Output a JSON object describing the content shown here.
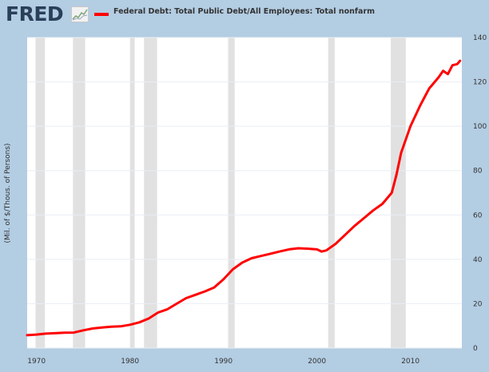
{
  "header": {
    "logo_text": "FRED",
    "logo_icon": "sparkline-chart-icon",
    "legend_label": "Federal Debt: Total Public Debt/All Employees: Total nonfarm",
    "legend_color": "#ff0000"
  },
  "colors": {
    "background": "#b3cde3",
    "plot_background": "#ffffff",
    "recession": "#e1e1e1",
    "line": "#ff0000",
    "grid": "#e9eef3"
  },
  "chart_data": {
    "type": "line",
    "title": "",
    "ylabel": "(Mil. of $/Thous. of Persons)",
    "xlabel": "",
    "xlim": [
      1969,
      2015.5
    ],
    "ylim": [
      0,
      140
    ],
    "x_ticks": [
      1970,
      1980,
      1990,
      2000,
      2010
    ],
    "y_ticks": [
      0,
      20,
      40,
      60,
      80,
      100,
      120,
      140
    ],
    "y_axis_side": "right",
    "grid": true,
    "legend_position": "top",
    "recessions": [
      [
        1969.9,
        1970.9
      ],
      [
        1973.9,
        1975.2
      ],
      [
        1980.0,
        1980.5
      ],
      [
        1981.5,
        1982.9
      ],
      [
        1990.5,
        1991.2
      ],
      [
        2001.2,
        2001.9
      ],
      [
        2007.9,
        2009.5
      ]
    ],
    "series": [
      {
        "name": "Federal Debt: Total Public Debt/All Employees: Total nonfarm",
        "color": "#ff0000",
        "x": [
          1969,
          1970,
          1971,
          1972,
          1973,
          1974,
          1975,
          1976,
          1977,
          1978,
          1979,
          1980,
          1981,
          1982,
          1983,
          1984,
          1985,
          1986,
          1987,
          1988,
          1989,
          1990,
          1991,
          1992,
          1993,
          1994,
          1995,
          1996,
          1997,
          1998,
          1999,
          2000,
          2000.5,
          2001,
          2002,
          2003,
          2004,
          2005,
          2006,
          2007,
          2008,
          2008.5,
          2009,
          2010,
          2011,
          2011.5,
          2012,
          2013,
          2013.5,
          2014,
          2014.5,
          2015,
          2015.3
        ],
        "y": [
          5.8,
          6.1,
          6.5,
          6.7,
          6.9,
          7.0,
          8.0,
          8.8,
          9.3,
          9.6,
          9.8,
          10.5,
          11.6,
          13.3,
          16.0,
          17.5,
          20.0,
          22.5,
          24.0,
          25.5,
          27.3,
          31.0,
          35.5,
          38.5,
          40.5,
          41.5,
          42.5,
          43.5,
          44.5,
          45.0,
          44.8,
          44.5,
          43.5,
          44.0,
          47.0,
          51.0,
          55.0,
          58.5,
          62.0,
          65.0,
          70.0,
          78.0,
          88.0,
          100.0,
          109.0,
          113.0,
          117.0,
          122.0,
          125.0,
          123.5,
          127.5,
          128.0,
          129.5
        ]
      }
    ]
  }
}
